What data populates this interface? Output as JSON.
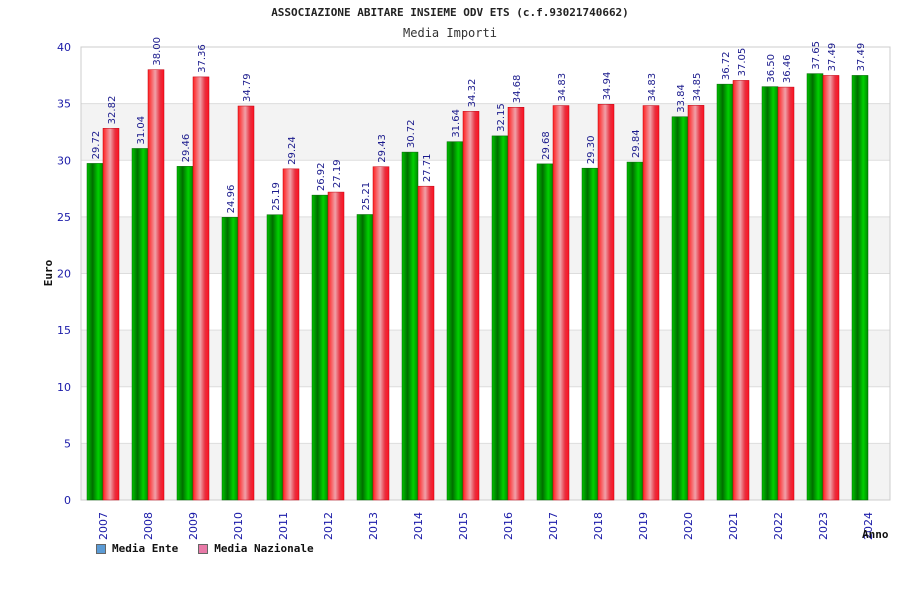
{
  "chart_data": {
    "type": "bar",
    "title": "ASSOCIAZIONE ABITARE INSIEME ODV ETS (c.f.93021740662)",
    "subtitle": "Media Importi",
    "xlabel": "Anno",
    "ylabel": "Euro",
    "ylim": [
      0,
      40
    ],
    "yticks": [
      0,
      5,
      10,
      15,
      20,
      25,
      30,
      35,
      40
    ],
    "grid": true,
    "legend_position": "bottom-left",
    "categories": [
      "2007",
      "2008",
      "2009",
      "2010",
      "2011",
      "2012",
      "2013",
      "2014",
      "2015",
      "2016",
      "2017",
      "2018",
      "2019",
      "2020",
      "2021",
      "2022",
      "2023",
      "2024"
    ],
    "series": [
      {
        "name": "Media Ente",
        "color": "#00a000",
        "values": [
          29.72,
          31.04,
          29.46,
          24.96,
          25.19,
          26.92,
          25.21,
          30.72,
          31.64,
          32.15,
          29.68,
          29.3,
          29.84,
          33.84,
          36.72,
          36.5,
          37.65,
          37.49
        ],
        "labels": [
          "29.72",
          "31.04",
          "29.46",
          "24.96",
          "25.19",
          "26.92",
          "25.21",
          "30.72",
          "31.64",
          "32.15",
          "29.68",
          "29.30",
          "29.84",
          "33.84",
          "36.72",
          "36.50",
          "37.65",
          "37.49"
        ]
      },
      {
        "name": "Media Nazionale",
        "color": "#e8202a",
        "values": [
          32.82,
          38.0,
          37.36,
          34.79,
          29.24,
          27.19,
          29.43,
          27.71,
          34.32,
          34.68,
          34.83,
          34.94,
          34.83,
          34.85,
          37.05,
          36.46,
          37.49,
          null
        ],
        "labels": [
          "32.82",
          "38.00",
          "37.36",
          "34.79",
          "29.24",
          "27.19",
          "29.43",
          "27.71",
          "34.32",
          "34.68",
          "34.83",
          "34.94",
          "34.83",
          "34.85",
          "37.05",
          "36.46",
          "37.49",
          ""
        ]
      }
    ]
  },
  "legend": {
    "items": [
      {
        "label": "Media Ente",
        "color": "#5b9bd5"
      },
      {
        "label": "Media Nazionale",
        "color": "#e879a7"
      }
    ]
  }
}
